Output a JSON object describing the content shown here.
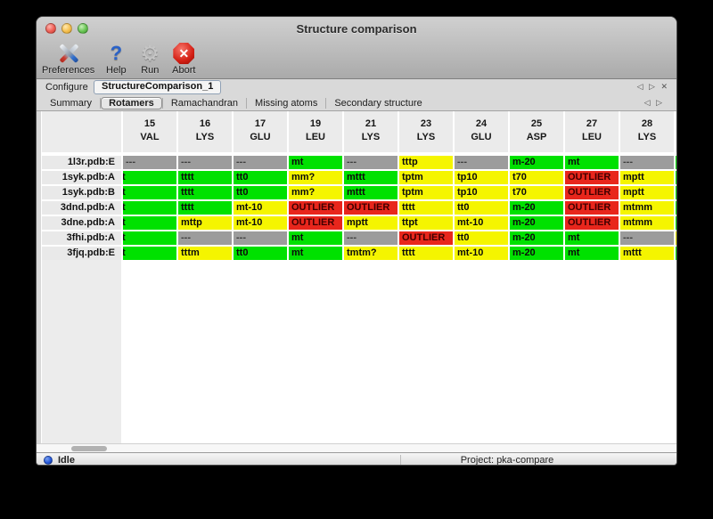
{
  "window": {
    "title": "Structure comparison"
  },
  "toolbar": {
    "items": [
      {
        "label": "Preferences",
        "icon": "tools-icon"
      },
      {
        "label": "Help",
        "icon": "question-icon"
      },
      {
        "label": "Run",
        "icon": "gear-icon"
      },
      {
        "label": "Abort",
        "icon": "stop-icon"
      }
    ],
    "gear_glyph": "⚙",
    "help_glyph": "?",
    "abort_glyph": "✕"
  },
  "configure": {
    "label": "Configure",
    "value": "StructureComparison_1",
    "nav_prev": "◁",
    "nav_next": "▷",
    "nav_close": "✕"
  },
  "tabs": {
    "items": [
      {
        "label": "Summary",
        "selected": false
      },
      {
        "label": "Rotamers",
        "selected": true
      },
      {
        "label": "Ramachandran",
        "selected": false
      },
      {
        "label": "Missing atoms",
        "selected": false
      },
      {
        "label": "Secondary structure",
        "selected": false
      }
    ],
    "nav_prev": "◁",
    "nav_next": "▷"
  },
  "colors": {
    "g": "#00e100",
    "y": "#f5f500",
    "r": "#e8261c",
    "x": "#9c9c9c"
  },
  "table": {
    "columns": [
      {
        "num": "15",
        "res": "VAL"
      },
      {
        "num": "16",
        "res": "LYS"
      },
      {
        "num": "17",
        "res": "GLU"
      },
      {
        "num": "19",
        "res": "LEU"
      },
      {
        "num": "21",
        "res": "LYS"
      },
      {
        "num": "23",
        "res": "LYS"
      },
      {
        "num": "24",
        "res": "GLU"
      },
      {
        "num": "25",
        "res": "ASP"
      },
      {
        "num": "27",
        "res": "LEU"
      },
      {
        "num": "28",
        "res": "LYS"
      }
    ],
    "rows": [
      {
        "label": "1l3r.pdb:E",
        "edge": "g",
        "cells": [
          {
            "t": "---",
            "c": "x"
          },
          {
            "t": "---",
            "c": "x"
          },
          {
            "t": "---",
            "c": "x"
          },
          {
            "t": "mt",
            "c": "g"
          },
          {
            "t": "---",
            "c": "x"
          },
          {
            "t": "tttp",
            "c": "y"
          },
          {
            "t": "---",
            "c": "x"
          },
          {
            "t": "m-20",
            "c": "g"
          },
          {
            "t": "mt",
            "c": "g"
          },
          {
            "t": "---",
            "c": "x"
          }
        ]
      },
      {
        "label": "1syk.pdb:A",
        "edge": "g",
        "cells": [
          {
            "t": "t",
            "c": "g",
            "clip": true
          },
          {
            "t": "tttt",
            "c": "g"
          },
          {
            "t": "tt0",
            "c": "g"
          },
          {
            "t": "mm?",
            "c": "y"
          },
          {
            "t": "mttt",
            "c": "g"
          },
          {
            "t": "tptm",
            "c": "y"
          },
          {
            "t": "tp10",
            "c": "y"
          },
          {
            "t": "t70",
            "c": "y"
          },
          {
            "t": "OUTLIER",
            "c": "r"
          },
          {
            "t": "mptt",
            "c": "y"
          }
        ]
      },
      {
        "label": "1syk.pdb:B",
        "edge": "g",
        "cells": [
          {
            "t": "t",
            "c": "g",
            "clip": true
          },
          {
            "t": "tttt",
            "c": "g"
          },
          {
            "t": "tt0",
            "c": "g"
          },
          {
            "t": "mm?",
            "c": "y"
          },
          {
            "t": "mttt",
            "c": "g"
          },
          {
            "t": "tptm",
            "c": "y"
          },
          {
            "t": "tp10",
            "c": "y"
          },
          {
            "t": "t70",
            "c": "y"
          },
          {
            "t": "OUTLIER",
            "c": "r"
          },
          {
            "t": "mptt",
            "c": "y"
          }
        ]
      },
      {
        "label": "3dnd.pdb:A",
        "edge": "g",
        "cells": [
          {
            "t": "t",
            "c": "g",
            "clip": true
          },
          {
            "t": "tttt",
            "c": "g"
          },
          {
            "t": "mt-10",
            "c": "y"
          },
          {
            "t": "OUTLIER",
            "c": "r"
          },
          {
            "t": "OUTLIER",
            "c": "r"
          },
          {
            "t": "tttt",
            "c": "y"
          },
          {
            "t": "tt0",
            "c": "y"
          },
          {
            "t": "m-20",
            "c": "g"
          },
          {
            "t": "OUTLIER",
            "c": "r"
          },
          {
            "t": "mtmm",
            "c": "y"
          }
        ]
      },
      {
        "label": "3dne.pdb:A",
        "edge": "g",
        "cells": [
          {
            "t": "t",
            "c": "g",
            "clip": true
          },
          {
            "t": "mttp",
            "c": "y"
          },
          {
            "t": "mt-10",
            "c": "y"
          },
          {
            "t": "OUTLIER",
            "c": "r"
          },
          {
            "t": "mptt",
            "c": "y"
          },
          {
            "t": "ttpt",
            "c": "y"
          },
          {
            "t": "mt-10",
            "c": "y"
          },
          {
            "t": "m-20",
            "c": "g"
          },
          {
            "t": "OUTLIER",
            "c": "r"
          },
          {
            "t": "mtmm",
            "c": "y"
          }
        ]
      },
      {
        "label": "3fhi.pdb:A",
        "edge": "y",
        "cells": [
          {
            "t": "t",
            "c": "g",
            "clip": true
          },
          {
            "t": "---",
            "c": "x"
          },
          {
            "t": "---",
            "c": "x"
          },
          {
            "t": "mt",
            "c": "g"
          },
          {
            "t": "---",
            "c": "x"
          },
          {
            "t": "OUTLIER",
            "c": "r"
          },
          {
            "t": "tt0",
            "c": "y"
          },
          {
            "t": "m-20",
            "c": "g"
          },
          {
            "t": "mt",
            "c": "g"
          },
          {
            "t": "---",
            "c": "x"
          }
        ]
      },
      {
        "label": "3fjq.pdb:E",
        "edge": "g",
        "cells": [
          {
            "t": "t",
            "c": "g",
            "clip": true
          },
          {
            "t": "tttm",
            "c": "y"
          },
          {
            "t": "tt0",
            "c": "g"
          },
          {
            "t": "mt",
            "c": "g"
          },
          {
            "t": "tmtm?",
            "c": "y"
          },
          {
            "t": "tttt",
            "c": "y"
          },
          {
            "t": "mt-10",
            "c": "y"
          },
          {
            "t": "m-20",
            "c": "g"
          },
          {
            "t": "mt",
            "c": "g"
          },
          {
            "t": "mttt",
            "c": "y"
          }
        ]
      }
    ]
  },
  "statusbar": {
    "status": "Idle",
    "project": "Project: pka-compare"
  }
}
